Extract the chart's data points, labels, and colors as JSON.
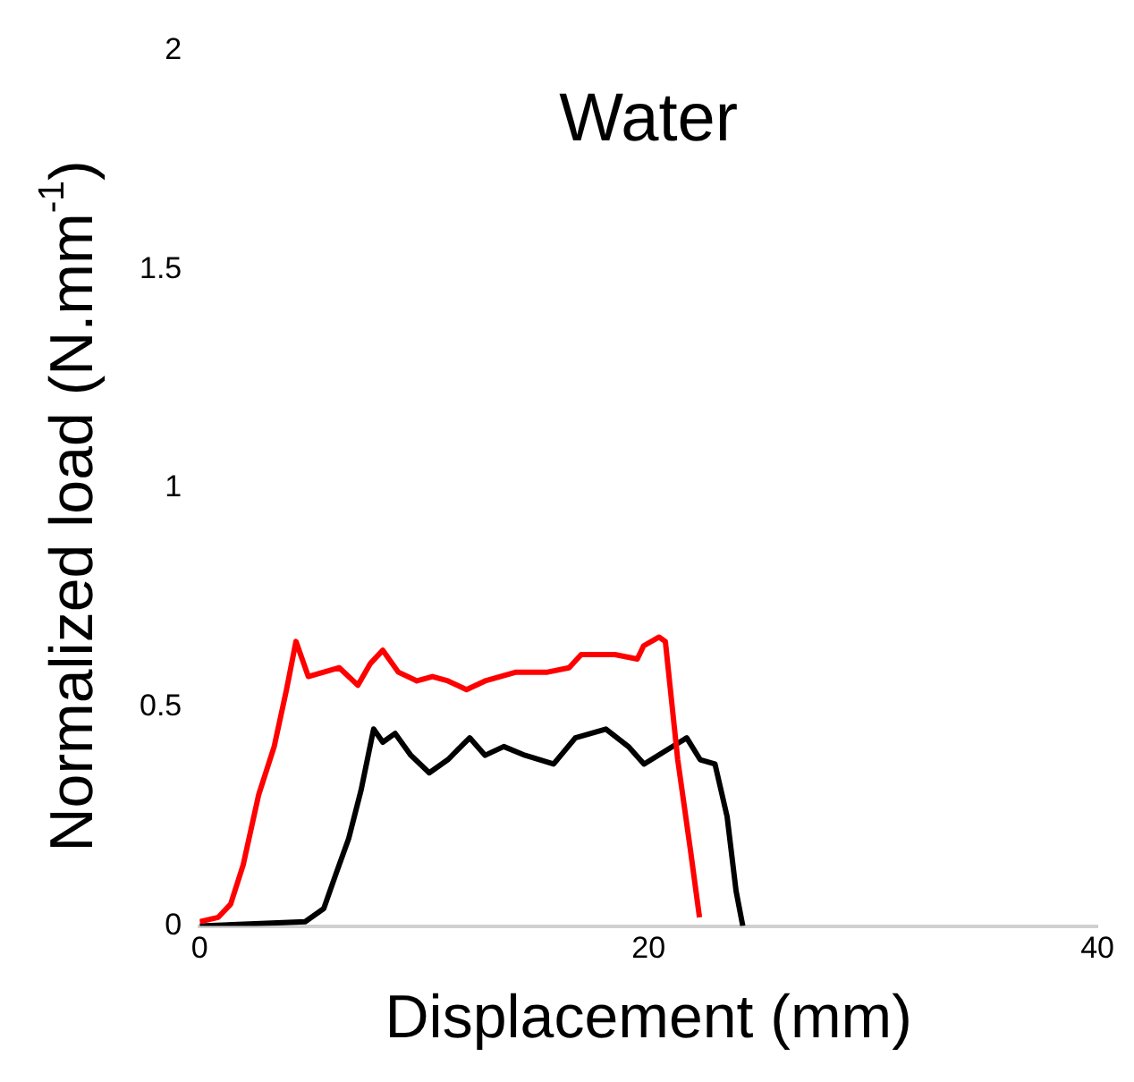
{
  "chart_data": {
    "type": "line",
    "title": "Water",
    "xlabel": "Displacement (mm)",
    "ylabel": "Normalized load (N.mm$^{-1}$)",
    "xlim": [
      0,
      40
    ],
    "xticks": [
      0,
      20,
      40
    ],
    "ylim": [
      0,
      2
    ],
    "yticks": [
      0,
      0.5,
      1,
      1.5,
      2
    ],
    "grid": false,
    "legend": false,
    "marker": "none",
    "line_style": "solid",
    "series": [
      {
        "color": "#ff0000",
        "x": [
          0,
          0.83,
          1.38,
          1.94,
          2.63,
          3.32,
          3.87,
          4.29,
          4.84,
          5.53,
          6.22,
          7.05,
          7.61,
          8.16,
          8.85,
          9.68,
          10.37,
          11.06,
          11.89,
          12.72,
          14.1,
          15.5,
          16.46,
          17.0,
          18.5,
          19.5,
          19.78,
          20.47,
          20.75,
          21.3,
          21.85,
          22.27
        ],
        "values": [
          0.01,
          0.02,
          0.05,
          0.14,
          0.3,
          0.41,
          0.54,
          0.65,
          0.57,
          0.58,
          0.59,
          0.55,
          0.6,
          0.63,
          0.58,
          0.56,
          0.57,
          0.56,
          0.54,
          0.56,
          0.58,
          0.58,
          0.59,
          0.62,
          0.62,
          0.61,
          0.64,
          0.66,
          0.65,
          0.38,
          0.18,
          0.02
        ]
      },
      {
        "color": "#000000",
        "x": [
          0,
          4.7,
          5.53,
          6.08,
          6.64,
          7.19,
          7.75,
          8.16,
          8.71,
          9.41,
          10.23,
          11.06,
          12.03,
          12.72,
          13.55,
          14.5,
          15.77,
          16.74,
          18.1,
          19.1,
          19.8,
          20.75,
          21.7,
          22.3,
          22.96,
          23.5,
          23.9,
          24.2
        ],
        "values": [
          0,
          0.01,
          0.04,
          0.12,
          0.2,
          0.31,
          0.45,
          0.42,
          0.44,
          0.39,
          0.35,
          0.38,
          0.43,
          0.39,
          0.41,
          0.39,
          0.37,
          0.43,
          0.45,
          0.41,
          0.37,
          0.4,
          0.43,
          0.38,
          0.37,
          0.25,
          0.08,
          0
        ]
      }
    ]
  }
}
